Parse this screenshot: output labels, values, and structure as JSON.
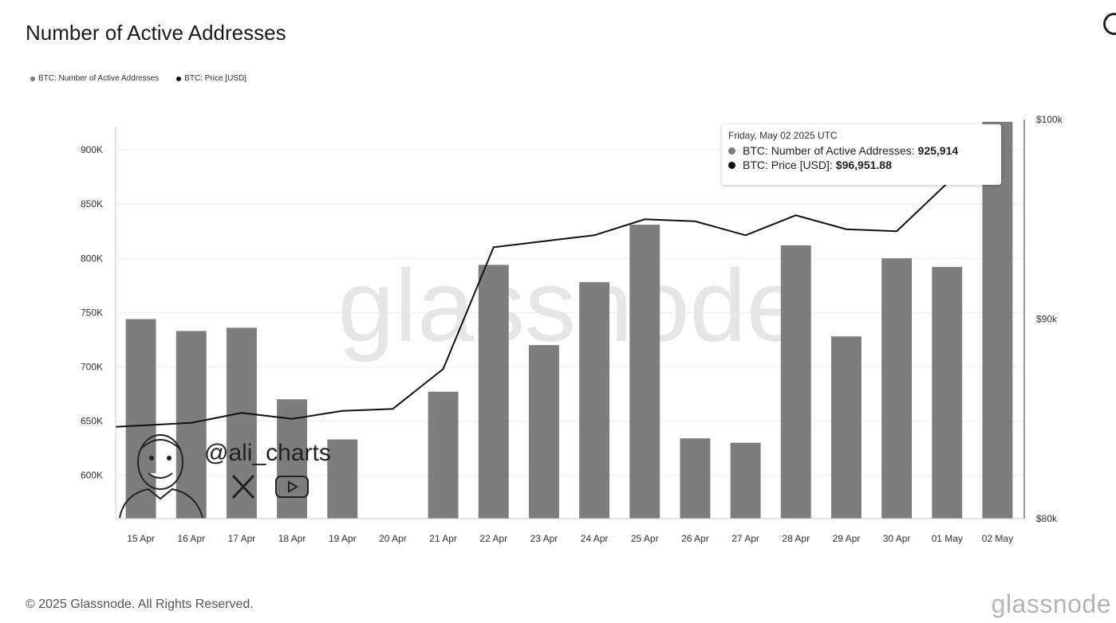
{
  "title": "Number of Active Addresses",
  "legend": [
    {
      "label": "BTC: Number of Active Addresses",
      "color": "#7d7d7d"
    },
    {
      "label": "BTC: Price [USD]",
      "color": "#111111"
    }
  ],
  "tooltip": {
    "date": "Friday, May 02 2025 UTC",
    "rows": [
      {
        "label": "BTC: Number of Active Addresses:",
        "value": "925,914",
        "color": "#7d7d7d"
      },
      {
        "label": "BTC: Price [USD]:",
        "value": "$96,951.88",
        "color": "#111111"
      }
    ]
  },
  "watermark": {
    "text": "glassnode",
    "author": "@ali_charts",
    "icons": [
      "x-logo-icon",
      "youtube-icon"
    ]
  },
  "footer": {
    "copyright": "© 2025 Glassnode. All Rights Reserved.",
    "brand": "glassnode"
  },
  "chart_data": {
    "type": "bar",
    "categories": [
      "15 Apr",
      "16 Apr",
      "17 Apr",
      "18 Apr",
      "19 Apr",
      "20 Apr",
      "21 Apr",
      "22 Apr",
      "23 Apr",
      "24 Apr",
      "25 Apr",
      "26 Apr",
      "27 Apr",
      "28 Apr",
      "29 Apr",
      "30 Apr",
      "01 May",
      "02 May"
    ],
    "series": [
      {
        "name": "BTC: Number of Active Addresses",
        "type": "bar",
        "axis": "left",
        "color": "#7d7d7d",
        "values": [
          744000,
          733000,
          736000,
          670000,
          633000,
          558000,
          677000,
          794000,
          720000,
          778000,
          831000,
          634000,
          630000,
          812000,
          728000,
          800000,
          792000,
          925914
        ]
      },
      {
        "name": "BTC: Price [USD]",
        "type": "line",
        "axis": "right",
        "color": "#111111",
        "values": [
          84600,
          84800,
          85300,
          85000,
          85400,
          85500,
          87500,
          93600,
          93900,
          94200,
          95000,
          94900,
          94200,
          95200,
          94500,
          94400,
          96800,
          96951.88
        ]
      }
    ],
    "y_left": {
      "ticks": [
        600000,
        650000,
        700000,
        750000,
        800000,
        850000,
        900000
      ],
      "tick_labels": [
        "600K",
        "650K",
        "700K",
        "750K",
        "800K",
        "850K",
        "900K"
      ],
      "range": [
        560000,
        928000
      ]
    },
    "y_right": {
      "ticks": [
        80000,
        90000,
        100000
      ],
      "tick_labels": [
        "$80k",
        "$90k",
        "$100k"
      ],
      "range": [
        80000,
        100000
      ]
    },
    "grid": true
  }
}
